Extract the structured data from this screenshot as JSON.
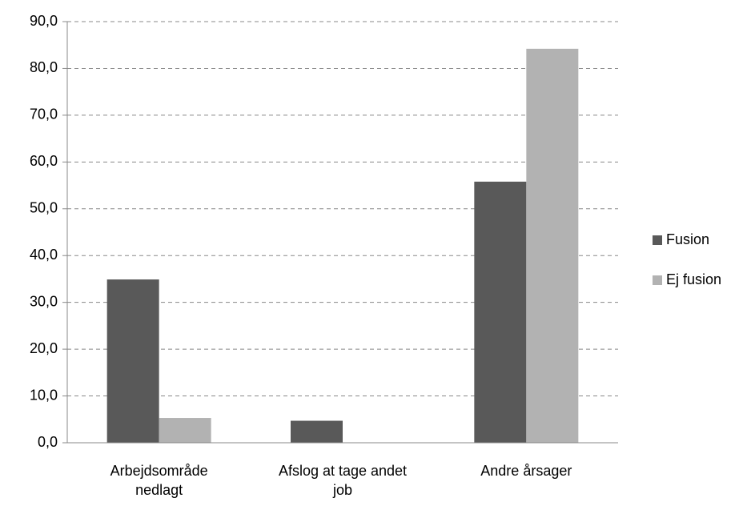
{
  "chart_data": {
    "type": "bar",
    "categories": [
      "Arbejdsområde nedlagt",
      "Afslog at tage andet job",
      "Andre årsager"
    ],
    "series": [
      {
        "name": "Fusion",
        "color": "#595959",
        "values": [
          34.9,
          4.7,
          55.8
        ]
      },
      {
        "name": "Ej fusion",
        "color": "#b2b2b2",
        "values": [
          5.3,
          0,
          84.2
        ]
      }
    ],
    "ylim": [
      0,
      90
    ],
    "yticks": [
      {
        "value": 0,
        "label": "0,0"
      },
      {
        "value": 10,
        "label": "10,0"
      },
      {
        "value": 20,
        "label": "20,0"
      },
      {
        "value": 30,
        "label": "30,0"
      },
      {
        "value": 40,
        "label": "40,0"
      },
      {
        "value": 50,
        "label": "50,0"
      },
      {
        "value": 60,
        "label": "60,0"
      },
      {
        "value": 70,
        "label": "70,0"
      },
      {
        "value": 80,
        "label": "80,0"
      },
      {
        "value": 90,
        "label": "90,0"
      }
    ],
    "grid": true,
    "legend": "right"
  }
}
